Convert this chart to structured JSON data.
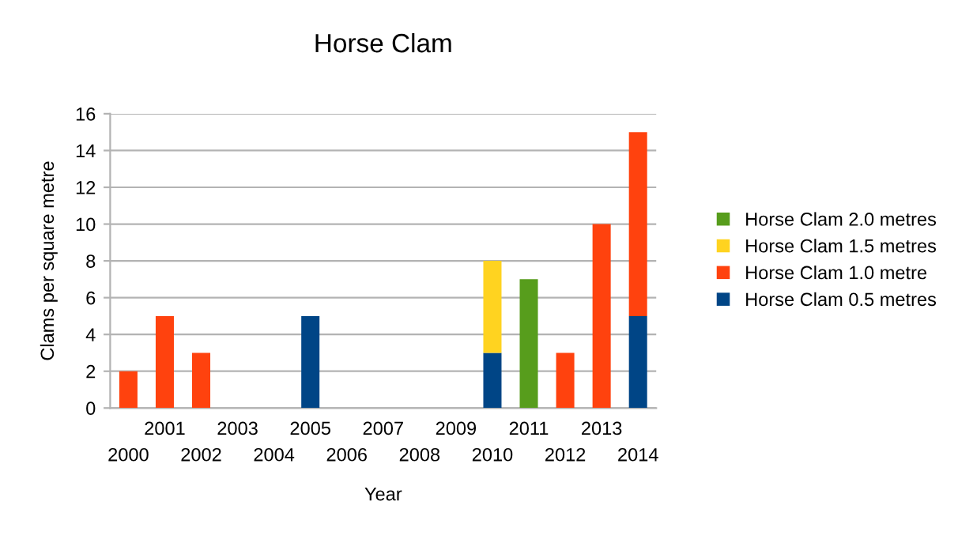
{
  "chart_data": {
    "type": "bar",
    "title": "Horse Clam",
    "xlabel": "Year",
    "ylabel": "Clams per square metre",
    "categories": [
      "2000",
      "2001",
      "2002",
      "2003",
      "2004",
      "2005",
      "2006",
      "2007",
      "2008",
      "2009",
      "2010",
      "2011",
      "2012",
      "2013",
      "2014"
    ],
    "stacked": true,
    "series": [
      {
        "name": "Horse Clam 0.5 metres",
        "color": "#004586",
        "values": [
          null,
          null,
          null,
          null,
          null,
          5,
          null,
          null,
          null,
          null,
          3,
          null,
          null,
          null,
          5
        ]
      },
      {
        "name": "Horse Clam 1.0 metre",
        "color": "#ff420e",
        "values": [
          2,
          5,
          3,
          null,
          null,
          null,
          null,
          null,
          null,
          null,
          null,
          null,
          3,
          10,
          10
        ]
      },
      {
        "name": "Horse Clam 1.5 metres",
        "color": "#ffd320",
        "values": [
          null,
          null,
          null,
          null,
          null,
          null,
          null,
          null,
          null,
          null,
          5,
          null,
          null,
          null,
          null
        ]
      },
      {
        "name": "Horse Clam 2.0 metres",
        "color": "#579d1c",
        "values": [
          null,
          null,
          null,
          null,
          null,
          null,
          null,
          null,
          null,
          null,
          null,
          7,
          null,
          null,
          null
        ]
      }
    ],
    "ylim": [
      0,
      16
    ],
    "yticks": [
      0,
      2,
      4,
      6,
      8,
      10,
      12,
      14,
      16
    ],
    "grid": "y",
    "legend": "right"
  }
}
